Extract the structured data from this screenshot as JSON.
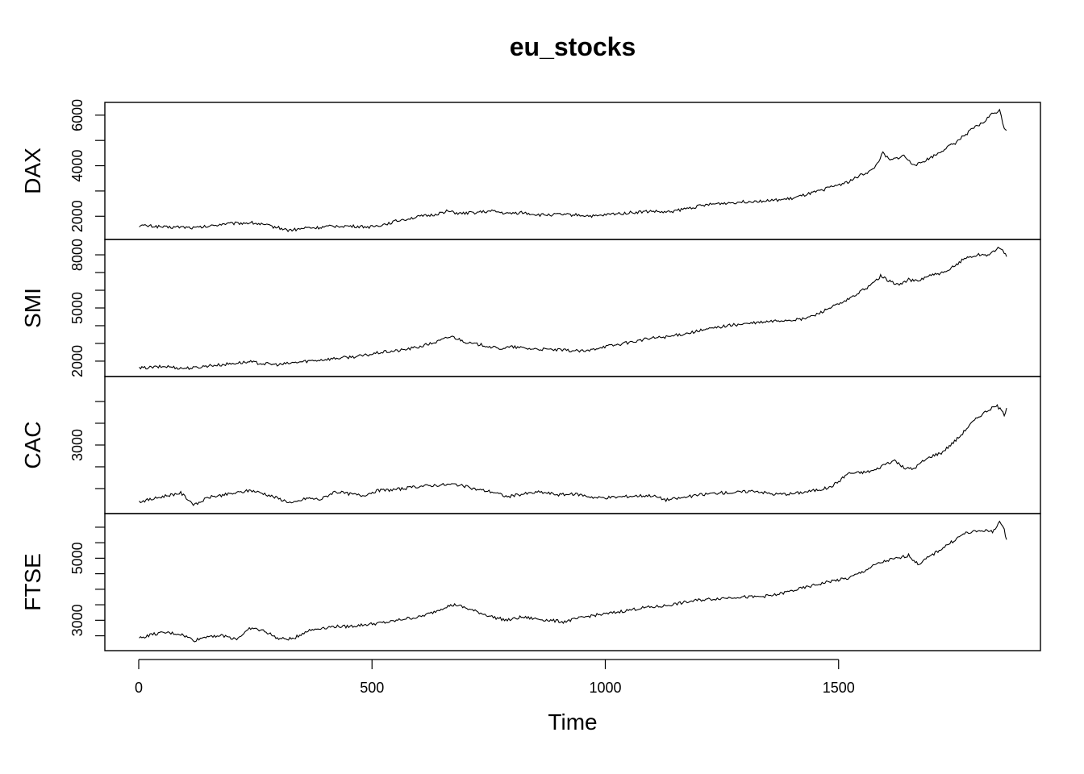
{
  "chart_data": {
    "type": "line",
    "title": "eu_stocks",
    "xlabel": "Time",
    "xlim": [
      0,
      1860
    ],
    "x_ticks": [
      0,
      500,
      1000,
      1500
    ],
    "panels": [
      {
        "name": "DAX",
        "ylim": [
          1402,
          6186
        ],
        "y_ticks": [
          2000,
          3000,
          4000,
          5000,
          6000
        ],
        "y_tick_labels": [
          "2000",
          "",
          "4000",
          "",
          "6000"
        ],
        "x": [
          1,
          20,
          40,
          60,
          90,
          120,
          150,
          180,
          210,
          240,
          260,
          280,
          300,
          320,
          340,
          360,
          380,
          400,
          430,
          460,
          500,
          530,
          560,
          600,
          630,
          660,
          690,
          720,
          760,
          790,
          820,
          860,
          900,
          940,
          980,
          1020,
          1060,
          1100,
          1130,
          1160,
          1200,
          1240,
          1280,
          1320,
          1360,
          1400,
          1430,
          1460,
          1490,
          1520,
          1550,
          1570,
          1580,
          1595,
          1610,
          1625,
          1640,
          1655,
          1670,
          1690,
          1710,
          1730,
          1750,
          1770,
          1790,
          1810,
          1825,
          1835,
          1845,
          1855,
          1860
        ],
        "values": [
          1630,
          1620,
          1600,
          1560,
          1580,
          1540,
          1600,
          1700,
          1720,
          1750,
          1690,
          1620,
          1550,
          1450,
          1480,
          1550,
          1540,
          1580,
          1620,
          1600,
          1580,
          1700,
          1850,
          1980,
          2050,
          2200,
          2100,
          2150,
          2200,
          2100,
          2150,
          2050,
          2070,
          2050,
          2000,
          2100,
          2150,
          2200,
          2150,
          2250,
          2400,
          2500,
          2550,
          2600,
          2620,
          2700,
          2850,
          3000,
          3200,
          3350,
          3650,
          3800,
          4000,
          4500,
          4200,
          4300,
          4400,
          4100,
          4050,
          4250,
          4450,
          4700,
          4900,
          5200,
          5500,
          5700,
          6000,
          6100,
          6186,
          5500,
          5400
        ]
      },
      {
        "name": "SMI",
        "ylim": [
          1587,
          8412
        ],
        "y_ticks": [
          2000,
          3000,
          4000,
          5000,
          6000,
          7000,
          8000
        ],
        "y_tick_labels": [
          "2000",
          "",
          "",
          "5000",
          "",
          "",
          "8000"
        ],
        "x": [
          1,
          30,
          60,
          90,
          120,
          150,
          180,
          210,
          240,
          270,
          300,
          330,
          360,
          400,
          440,
          480,
          520,
          560,
          600,
          640,
          670,
          690,
          710,
          740,
          770,
          800,
          840,
          880,
          920,
          960,
          990,
          1020,
          1060,
          1100,
          1140,
          1180,
          1220,
          1260,
          1300,
          1340,
          1380,
          1420,
          1450,
          1480,
          1510,
          1540,
          1570,
          1590,
          1610,
          1630,
          1650,
          1670,
          1690,
          1710,
          1730,
          1750,
          1770,
          1800,
          1820,
          1835,
          1845,
          1855,
          1860
        ],
        "values": [
          1600,
          1650,
          1700,
          1600,
          1620,
          1750,
          1800,
          1900,
          1950,
          1850,
          1800,
          1900,
          2000,
          2100,
          2200,
          2300,
          2500,
          2600,
          2800,
          3100,
          3400,
          3200,
          3000,
          2900,
          2700,
          2800,
          2700,
          2650,
          2600,
          2550,
          2800,
          2900,
          3100,
          3300,
          3400,
          3600,
          3800,
          4000,
          4100,
          4200,
          4300,
          4350,
          4600,
          5000,
          5300,
          5800,
          6300,
          6800,
          6500,
          6300,
          6600,
          6500,
          6800,
          6900,
          7000,
          7400,
          7800,
          8000,
          8000,
          8200,
          8412,
          8100,
          7900
        ]
      },
      {
        "name": "CAC",
        "ylim": [
          1611,
          4388
        ],
        "y_ticks": [
          2000,
          2500,
          3000,
          3500,
          4000
        ],
        "y_tick_labels": [
          "",
          "",
          "3000",
          "",
          ""
        ],
        "x": [
          1,
          30,
          60,
          90,
          120,
          150,
          180,
          210,
          240,
          270,
          300,
          330,
          360,
          390,
          420,
          450,
          480,
          510,
          540,
          570,
          600,
          640,
          680,
          720,
          760,
          790,
          820,
          860,
          900,
          940,
          980,
          1020,
          1060,
          1100,
          1130,
          1160,
          1200,
          1240,
          1280,
          1320,
          1360,
          1400,
          1440,
          1480,
          1500,
          1520,
          1540,
          1560,
          1580,
          1600,
          1620,
          1640,
          1660,
          1680,
          1700,
          1720,
          1740,
          1760,
          1780,
          1800,
          1820,
          1840,
          1855,
          1860
        ],
        "values": [
          1700,
          1760,
          1840,
          1900,
          1620,
          1800,
          1850,
          1900,
          1960,
          1880,
          1770,
          1660,
          1780,
          1750,
          1930,
          1880,
          1840,
          1950,
          1970,
          2000,
          2050,
          2080,
          2100,
          1990,
          1920,
          1810,
          1870,
          1920,
          1860,
          1870,
          1790,
          1800,
          1830,
          1840,
          1740,
          1780,
          1850,
          1900,
          1910,
          1950,
          1870,
          1880,
          1940,
          2020,
          2160,
          2350,
          2360,
          2380,
          2430,
          2570,
          2650,
          2470,
          2450,
          2620,
          2750,
          2820,
          3000,
          3200,
          3450,
          3650,
          3800,
          3900,
          3700,
          3850
        ]
      },
      {
        "name": "FTSE",
        "ylim": [
          2281,
          6179
        ],
        "y_ticks": [
          2500,
          3000,
          3500,
          4000,
          4500,
          5000,
          5500,
          6000
        ],
        "y_tick_labels": [
          "",
          "3000",
          "",
          "",
          "",
          "5000",
          "",
          ""
        ],
        "x": [
          1,
          30,
          60,
          90,
          120,
          150,
          180,
          210,
          240,
          270,
          300,
          330,
          360,
          390,
          420,
          450,
          480,
          510,
          540,
          570,
          600,
          630,
          660,
          680,
          700,
          730,
          760,
          790,
          820,
          850,
          880,
          910,
          940,
          970,
          1000,
          1040,
          1080,
          1120,
          1160,
          1200,
          1240,
          1280,
          1320,
          1360,
          1400,
          1440,
          1480,
          1500,
          1520,
          1550,
          1580,
          1610,
          1630,
          1650,
          1670,
          1690,
          1710,
          1730,
          1750,
          1770,
          1790,
          1810,
          1830,
          1845,
          1855,
          1860
        ],
        "values": [
          2420,
          2550,
          2600,
          2550,
          2350,
          2500,
          2500,
          2400,
          2750,
          2650,
          2400,
          2400,
          2650,
          2750,
          2800,
          2800,
          2850,
          2900,
          2950,
          3050,
          3100,
          3250,
          3450,
          3500,
          3400,
          3250,
          3100,
          3000,
          3100,
          3050,
          3000,
          2950,
          3050,
          3150,
          3200,
          3300,
          3400,
          3450,
          3550,
          3650,
          3700,
          3750,
          3750,
          3800,
          3950,
          4100,
          4250,
          4300,
          4350,
          4550,
          4800,
          4950,
          5000,
          5100,
          4800,
          5000,
          5200,
          5400,
          5600,
          5800,
          5850,
          5900,
          5850,
          6179,
          5900,
          5600
        ]
      }
    ]
  }
}
